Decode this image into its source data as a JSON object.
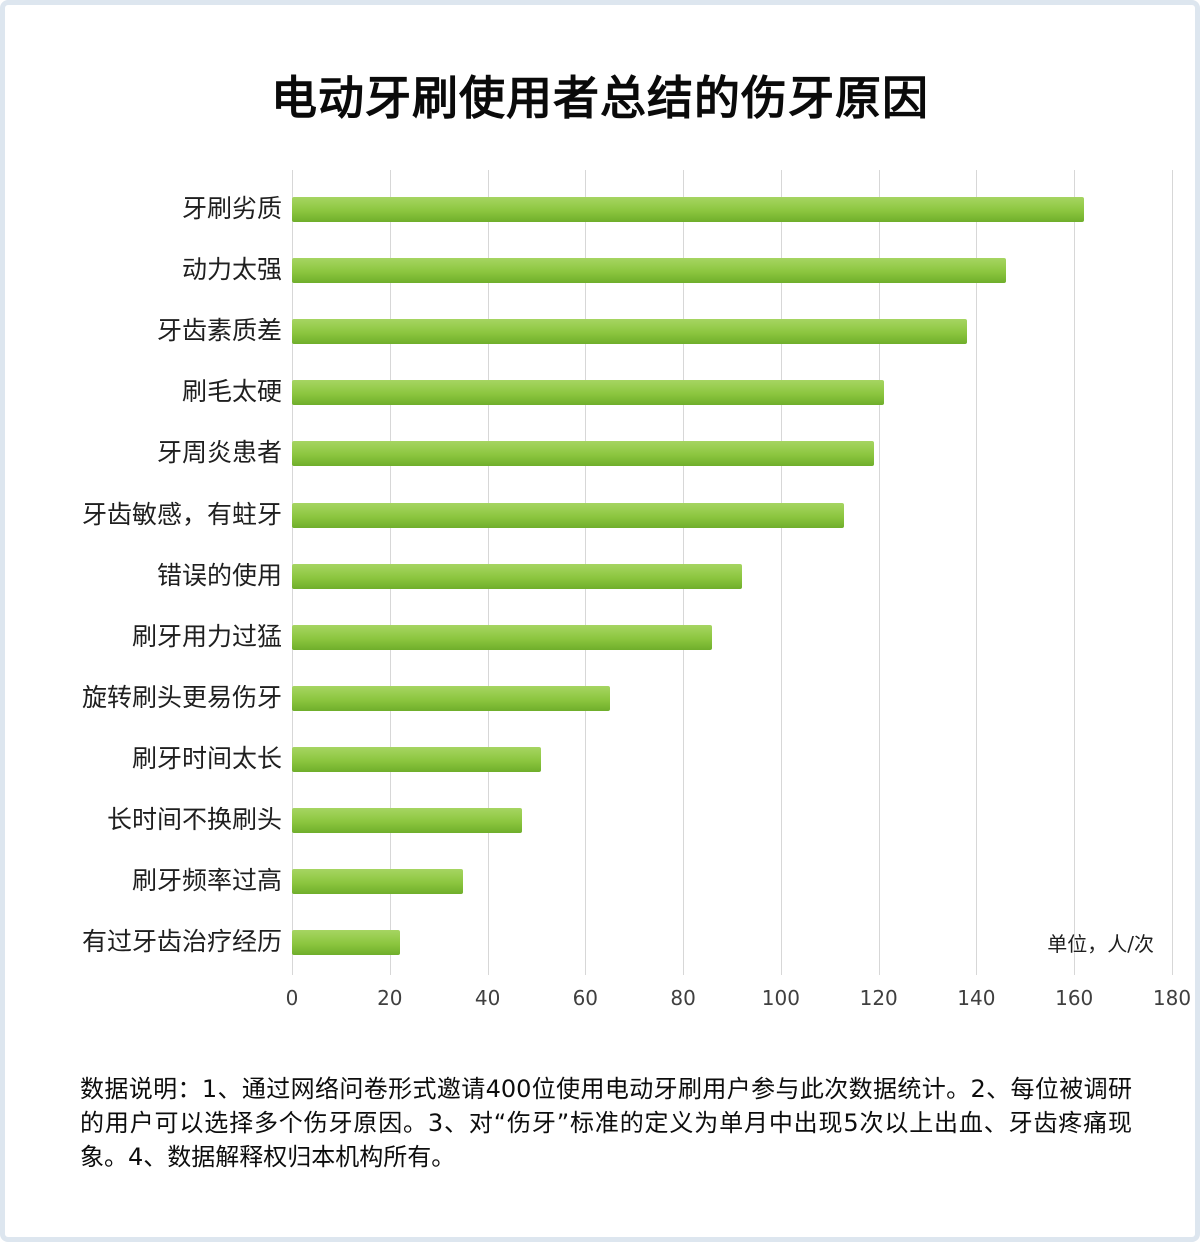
{
  "title": "电动牙刷使用者总结的伤牙原因",
  "chart_data": {
    "type": "bar",
    "orientation": "horizontal",
    "title": "电动牙刷使用者总结的伤牙原因",
    "categories": [
      "牙刷劣质",
      "动力太强",
      "牙齿素质差",
      "刷毛太硬",
      "牙周炎患者",
      "牙齿敏感，有蛀牙",
      "错误的使用",
      "刷牙用力过猛",
      "旋转刷头更易伤牙",
      "刷牙时间太长",
      "长时间不换刷头",
      "刷牙频率过高",
      "有过牙齿治疗经历"
    ],
    "values": [
      162,
      146,
      138,
      121,
      119,
      113,
      92,
      86,
      65,
      51,
      47,
      35,
      22
    ],
    "xlim": [
      0,
      180
    ],
    "x_ticks": [
      0,
      20,
      40,
      60,
      80,
      100,
      120,
      140,
      160,
      180
    ],
    "unit_label": "单位，人/次",
    "grid": true,
    "legend": "none",
    "bar_color": "#8CC63F",
    "bar_color_light": "#A6D562",
    "bar_color_dark": "#6FAE2B",
    "gridline_color": "#d7d7d7"
  },
  "footer": {
    "note": "数据说明：1、通过网络问卷形式邀请400位使用电动牙刷用户参与此次数据统计。2、每位被调研的用户可以选择多个伤牙原因。3、对“伤牙”标准的定义为单月中出现5次以上出血、牙齿疼痛现象。4、数据解释权归本机构所有。"
  }
}
